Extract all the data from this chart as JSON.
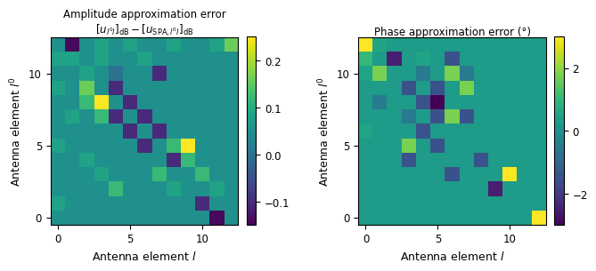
{
  "title1": "Amplitude approximation error",
  "subtitle1": "$[u_{l'l}]_{\\mathrm{dB}} - [u_{\\mathrm{SPA},l'l}]_{\\mathrm{dB}}$",
  "title2": "Phase approximation error (°)",
  "xlabel": "Antenna element $l$",
  "ylabel": "Antenna element $l'$",
  "cmap": "viridis",
  "vmin1": -0.15,
  "vmax1": 0.25,
  "vmin2": -3.0,
  "vmax2": 3.0,
  "n": 13,
  "cticks1": [
    -0.1,
    0,
    0.1,
    0.2
  ],
  "cticks2": [
    -2,
    0,
    2
  ]
}
